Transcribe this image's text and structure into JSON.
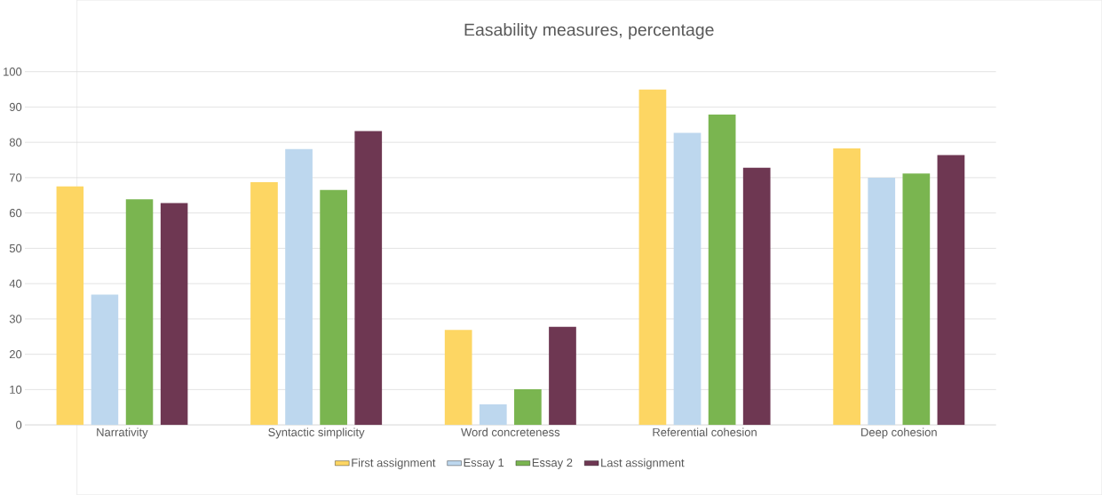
{
  "chart_data": {
    "type": "bar",
    "title": "Easability measures, percentage",
    "categories": [
      "Narrativity",
      "Syntactic simplicity",
      "Word concreteness",
      "Referential cohesion",
      "Deep cohesion"
    ],
    "series": [
      {
        "name": "First assignment",
        "color": "#fdd663",
        "values": [
          67.5,
          68.7,
          26.9,
          95.0,
          78.3
        ]
      },
      {
        "name": "Essay 1",
        "color": "#bdd7ee",
        "values": [
          36.9,
          78.1,
          5.8,
          82.7,
          70.0
        ]
      },
      {
        "name": "Essay 2",
        "color": "#7ab550",
        "values": [
          63.9,
          66.5,
          10.1,
          87.9,
          71.2
        ]
      },
      {
        "name": "Last assignment",
        "color": "#6e3752",
        "values": [
          62.8,
          83.2,
          27.8,
          72.8,
          76.4
        ]
      }
    ],
    "ylim": [
      0,
      100
    ],
    "yticks": [
      0,
      10,
      20,
      30,
      40,
      50,
      60,
      70,
      80,
      90,
      100
    ],
    "grid": "y",
    "legend": "bottom"
  }
}
